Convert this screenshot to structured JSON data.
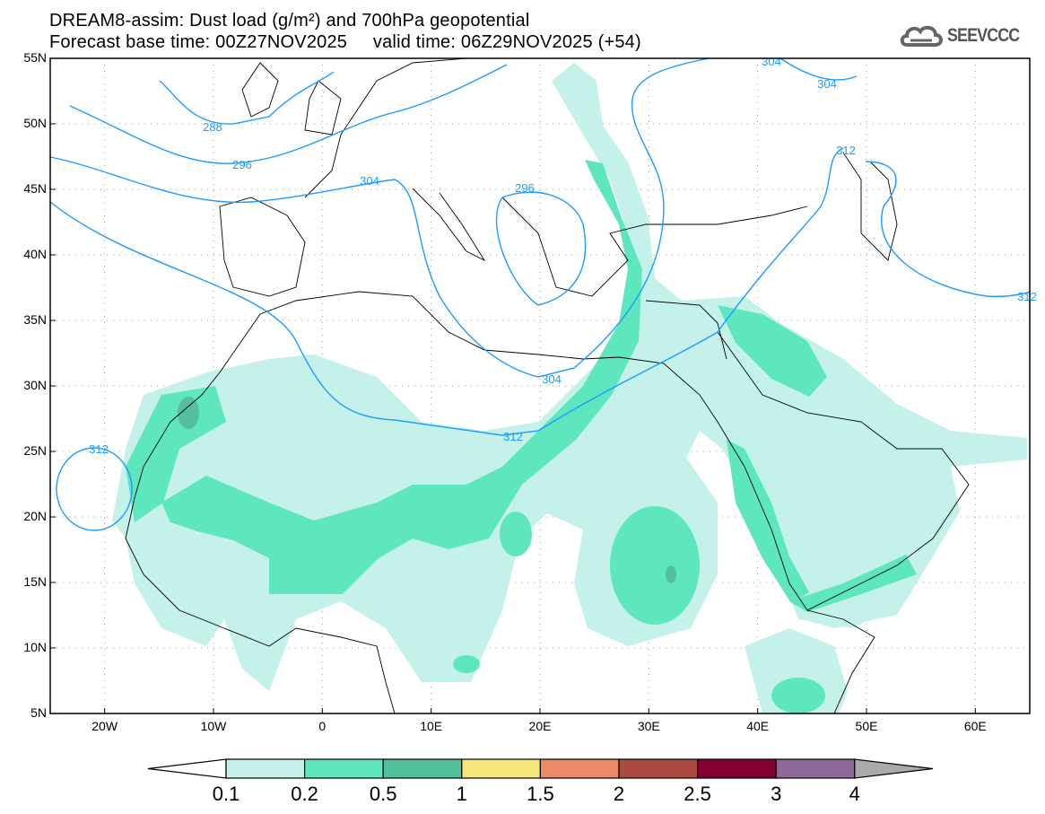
{
  "header": {
    "title_line1": "DREAM8-assim: Dust load (g/m²) and 700hPa geopotential",
    "title_line2": "Forecast base time: 00Z27NOV2025     valid time: 06Z29NOV2025 (+54)",
    "logo_text": "SEEVCCC"
  },
  "map": {
    "lat_labels": [
      "55N",
      "50N",
      "45N",
      "40N",
      "35N",
      "30N",
      "25N",
      "20N",
      "15N",
      "10N",
      "5N"
    ],
    "lon_labels": [
      "20W",
      "10W",
      "0",
      "10E",
      "20E",
      "30E",
      "40E",
      "50E",
      "60E"
    ],
    "contour_labels": [
      "288",
      "296",
      "304",
      "304",
      "312",
      "312",
      "296",
      "304",
      "312",
      "304",
      "312"
    ],
    "colors": {
      "contour": "#1e9bff",
      "coast": "#000000",
      "grid": "#9a9a9a"
    }
  },
  "colorbar": {
    "labels": [
      "0.1",
      "0.2",
      "0.5",
      "1",
      "1.5",
      "2",
      "2.5",
      "3",
      "4"
    ],
    "colors": [
      "#c4f2ea",
      "#5ee6bf",
      "#54bf9d",
      "#f6e67a",
      "#ec8a68",
      "#ab4a40",
      "#820030",
      "#8d6898"
    ],
    "below_color": "#ffffff",
    "above_color": "#aaaaaa"
  }
}
